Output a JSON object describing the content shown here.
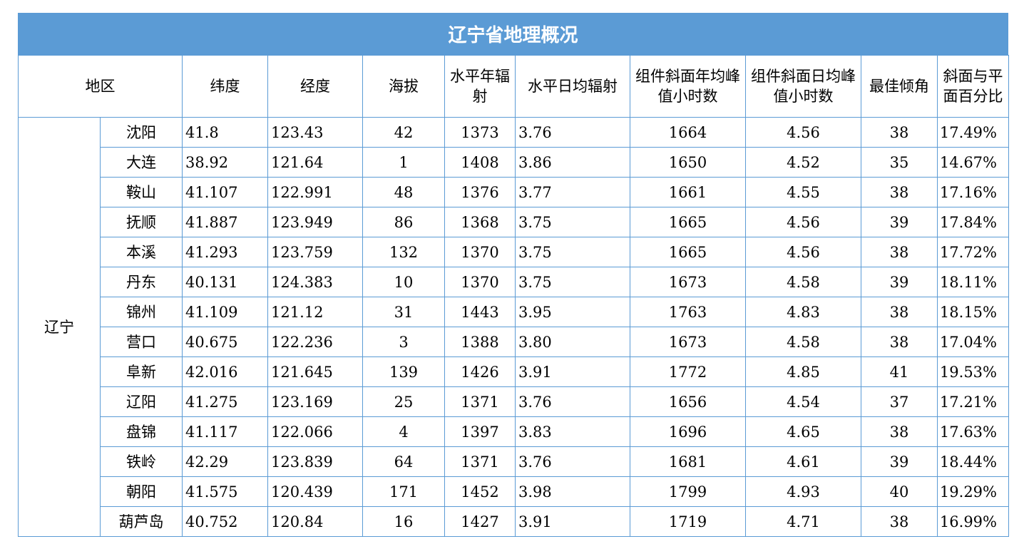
{
  "title": "辽宁省地理概况",
  "headers": [
    "地区",
    "纬度",
    "经度",
    "海拔",
    "水平年辐射",
    "水平日均辐射",
    "组件斜面年均峰值小时数",
    "组件斜面日均峰值小时数",
    "最佳倾角",
    "斜面与平面百分比"
  ],
  "region": "辽宁",
  "rows": [
    {
      "city": "沈阳",
      "lat": "41.8",
      "lon": "123.43",
      "alt": "42",
      "h_year": "1373",
      "h_day": "3.76",
      "t_year": "1664",
      "t_day": "4.56",
      "angle": "38",
      "pct": "17.49%"
    },
    {
      "city": "大连",
      "lat": "38.92",
      "lon": "121.64",
      "alt": "1",
      "h_year": "1408",
      "h_day": "3.86",
      "t_year": "1650",
      "t_day": "4.52",
      "angle": "35",
      "pct": "14.67%"
    },
    {
      "city": "鞍山",
      "lat": "41.107",
      "lon": "122.991",
      "alt": "48",
      "h_year": "1376",
      "h_day": "3.77",
      "t_year": "1661",
      "t_day": "4.55",
      "angle": "38",
      "pct": "17.16%"
    },
    {
      "city": "抚顺",
      "lat": "41.887",
      "lon": "123.949",
      "alt": "86",
      "h_year": "1368",
      "h_day": "3.75",
      "t_year": "1665",
      "t_day": "4.56",
      "angle": "39",
      "pct": "17.84%"
    },
    {
      "city": "本溪",
      "lat": "41.293",
      "lon": "123.759",
      "alt": "132",
      "h_year": "1370",
      "h_day": "3.75",
      "t_year": "1665",
      "t_day": "4.56",
      "angle": "38",
      "pct": "17.72%"
    },
    {
      "city": "丹东",
      "lat": "40.131",
      "lon": "124.383",
      "alt": "10",
      "h_year": "1370",
      "h_day": "3.75",
      "t_year": "1673",
      "t_day": "4.58",
      "angle": "39",
      "pct": "18.11%"
    },
    {
      "city": "锦州",
      "lat": "41.109",
      "lon": "121.12",
      "alt": "31",
      "h_year": "1443",
      "h_day": "3.95",
      "t_year": "1763",
      "t_day": "4.83",
      "angle": "38",
      "pct": "18.15%"
    },
    {
      "city": "营口",
      "lat": "40.675",
      "lon": "122.236",
      "alt": "3",
      "h_year": "1388",
      "h_day": "3.80",
      "t_year": "1673",
      "t_day": "4.58",
      "angle": "38",
      "pct": "17.04%"
    },
    {
      "city": "阜新",
      "lat": "42.016",
      "lon": "121.645",
      "alt": "139",
      "h_year": "1426",
      "h_day": "3.91",
      "t_year": "1772",
      "t_day": "4.85",
      "angle": "41",
      "pct": "19.53%"
    },
    {
      "city": "辽阳",
      "lat": "41.275",
      "lon": "123.169",
      "alt": "25",
      "h_year": "1371",
      "h_day": "3.76",
      "t_year": "1656",
      "t_day": "4.54",
      "angle": "37",
      "pct": "17.21%"
    },
    {
      "city": "盘锦",
      "lat": "41.117",
      "lon": "122.066",
      "alt": "4",
      "h_year": "1397",
      "h_day": "3.83",
      "t_year": "1696",
      "t_day": "4.65",
      "angle": "38",
      "pct": "17.63%"
    },
    {
      "city": "铁岭",
      "lat": "42.29",
      "lon": "123.839",
      "alt": "64",
      "h_year": "1371",
      "h_day": "3.76",
      "t_year": "1681",
      "t_day": "4.61",
      "angle": "39",
      "pct": "18.44%"
    },
    {
      "city": "朝阳",
      "lat": "41.575",
      "lon": "120.439",
      "alt": "171",
      "h_year": "1452",
      "h_day": "3.98",
      "t_year": "1799",
      "t_day": "4.93",
      "angle": "40",
      "pct": "19.29%"
    },
    {
      "city": "葫芦岛",
      "lat": "40.752",
      "lon": "120.84",
      "alt": "16",
      "h_year": "1427",
      "h_day": "3.91",
      "t_year": "1719",
      "t_day": "4.71",
      "angle": "38",
      "pct": "16.99%"
    }
  ]
}
